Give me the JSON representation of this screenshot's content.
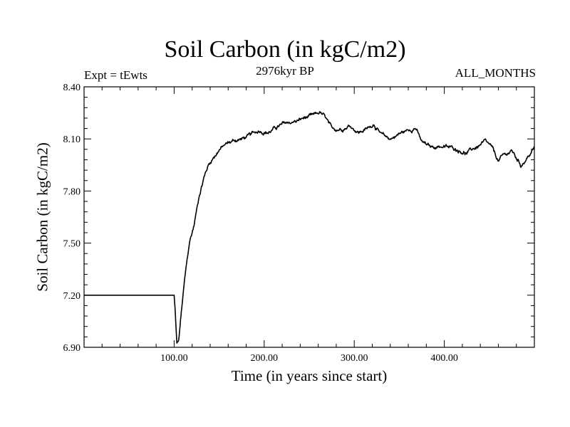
{
  "chart_data": {
    "type": "line",
    "title": "Soil Carbon (in kgC/m2)",
    "subtitle": "2976kyr BP",
    "left_label": "Expt = tEwts",
    "right_label": "ALL_MONTHS",
    "xlabel": "Time (in years since start)",
    "ylabel": "Soil Carbon (in kgC/m2)",
    "xlim": [
      0,
      500
    ],
    "ylim": [
      6.9,
      8.4
    ],
    "x_ticks": [
      100,
      200,
      300,
      400
    ],
    "x_tick_labels": [
      "100.00",
      "200.00",
      "300.00",
      "400.00"
    ],
    "y_ticks": [
      6.9,
      7.2,
      7.5,
      7.8,
      8.1,
      8.4
    ],
    "y_tick_labels": [
      "6.90",
      "7.20",
      "7.50",
      "7.80",
      "8.10",
      "8.40"
    ],
    "series": [
      {
        "name": "Soil Carbon",
        "color": "#000000",
        "x": [
          0,
          100,
          101,
          103,
          105,
          108,
          112,
          117,
          122,
          128,
          133,
          138,
          143,
          150,
          158,
          166,
          175,
          185,
          195,
          205,
          215,
          225,
          235,
          245,
          255,
          262,
          268,
          275,
          285,
          295,
          305,
          315,
          322,
          330,
          340,
          350,
          360,
          368,
          375,
          385,
          395,
          405,
          415,
          425,
          435,
          445,
          452,
          460,
          465,
          475,
          485,
          490,
          495,
          500
        ],
        "values": [
          7.2,
          7.2,
          7.12,
          6.92,
          6.93,
          7.1,
          7.3,
          7.5,
          7.6,
          7.78,
          7.88,
          7.95,
          7.99,
          8.04,
          8.07,
          8.09,
          8.1,
          8.12,
          8.15,
          8.14,
          8.17,
          8.19,
          8.2,
          8.22,
          8.23,
          8.25,
          8.22,
          8.15,
          8.16,
          8.18,
          8.14,
          8.16,
          8.19,
          8.12,
          8.1,
          8.13,
          8.15,
          8.17,
          8.08,
          8.05,
          8.06,
          8.05,
          8.04,
          8.02,
          8.05,
          8.08,
          8.05,
          7.97,
          8.0,
          8.03,
          7.95,
          7.98,
          8.01,
          8.05
        ]
      }
    ]
  }
}
